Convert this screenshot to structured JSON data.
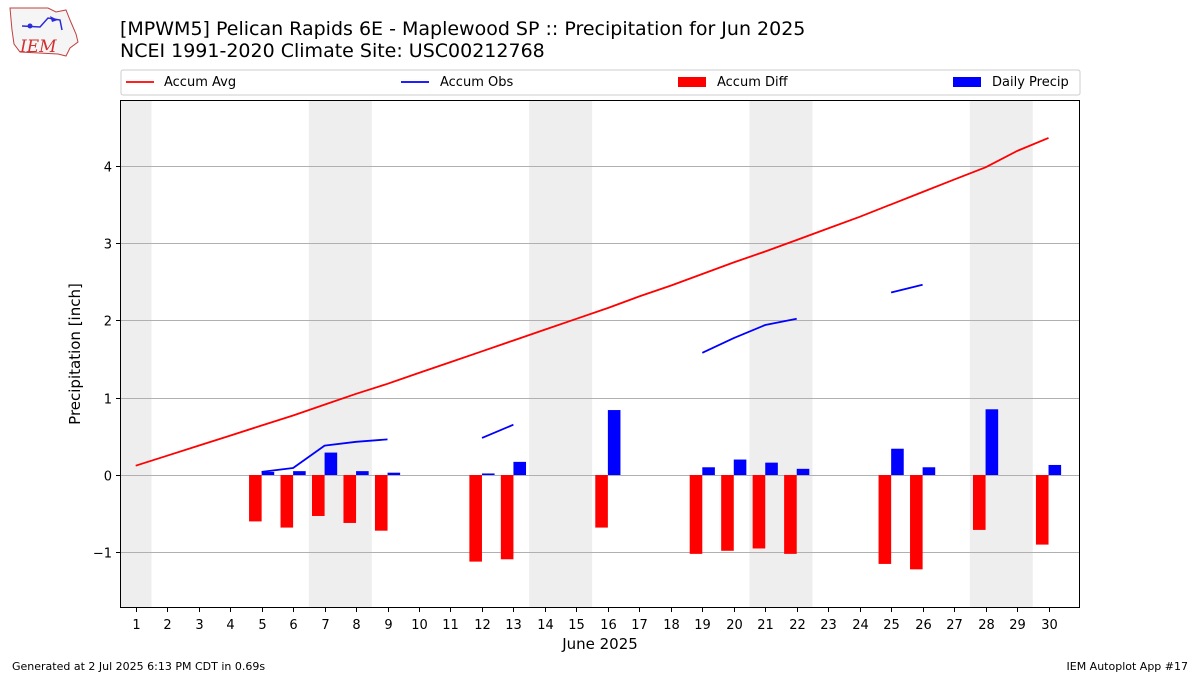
{
  "title_line1": "[MPWM5] Pelican Rapids 6E - Maplewood SP :: Precipitation for Jun 2025",
  "title_line2": "NCEI 1991-2020 Climate Site: USC00212768",
  "logo_text": "IEM",
  "footer_left": "Generated at 2 Jul 2025 6:13 PM CDT in 0.69s",
  "footer_right": "IEM Autoplot App #17",
  "colors": {
    "accum_avg": "#ff0000",
    "accum_obs": "#0000ff",
    "accum_diff": "#ff0000",
    "daily_precip": "#0000ff",
    "weekend_shade": "#eeeeee"
  },
  "chart_data": {
    "type": "bar",
    "xlabel": "June 2025",
    "ylabel": "Precipitation [inch]",
    "xlim": [
      0.5,
      31.0
    ],
    "ylim": [
      -1.72,
      4.85
    ],
    "yticks": [
      -1,
      0,
      1,
      2,
      3,
      4
    ],
    "ytick_labels": [
      "−1",
      "0",
      "1",
      "2",
      "3",
      "4"
    ],
    "x": [
      1,
      2,
      3,
      4,
      5,
      6,
      7,
      8,
      9,
      10,
      11,
      12,
      13,
      14,
      15,
      16,
      17,
      18,
      19,
      20,
      21,
      22,
      23,
      24,
      25,
      26,
      27,
      28,
      29,
      30
    ],
    "xtick_labels": [
      "1",
      "2",
      "3",
      "4",
      "5",
      "6",
      "7",
      "8",
      "9",
      "10",
      "11",
      "12",
      "13",
      "14",
      "15",
      "16",
      "17",
      "18",
      "19",
      "20",
      "21",
      "22",
      "23",
      "24",
      "25",
      "26",
      "27",
      "28",
      "29",
      "30"
    ],
    "shaded_days": [
      [
        0.5,
        1.5
      ],
      [
        6.5,
        8.5
      ],
      [
        13.5,
        15.5
      ],
      [
        20.5,
        22.5
      ],
      [
        27.5,
        29.5
      ]
    ],
    "grid": "horizontal",
    "legend_placement": "top",
    "series": [
      {
        "name": "Accum Avg",
        "kind": "line",
        "values": [
          0.12,
          0.25,
          0.38,
          0.51,
          0.64,
          0.77,
          0.91,
          1.05,
          1.18,
          1.32,
          1.46,
          1.6,
          1.74,
          1.88,
          2.02,
          2.16,
          2.31,
          2.45,
          2.6,
          2.75,
          2.89,
          3.04,
          3.19,
          3.34,
          3.5,
          3.66,
          3.82,
          3.98,
          4.19,
          4.36
        ]
      },
      {
        "name": "Accum Obs",
        "kind": "line",
        "values": [
          null,
          null,
          null,
          null,
          0.04,
          0.09,
          0.38,
          0.43,
          0.46,
          null,
          null,
          0.48,
          0.65,
          null,
          null,
          null,
          null,
          null,
          1.58,
          1.77,
          1.94,
          2.02,
          null,
          null,
          2.36,
          2.46,
          null,
          null,
          null,
          null
        ]
      },
      {
        "name": "Accum Diff",
        "kind": "bar",
        "values": [
          null,
          null,
          null,
          null,
          -0.6,
          -0.68,
          -0.53,
          -0.62,
          -0.72,
          null,
          null,
          -1.12,
          -1.09,
          null,
          null,
          -0.68,
          null,
          null,
          -1.02,
          -0.98,
          -0.95,
          -1.02,
          null,
          null,
          -1.15,
          -1.22,
          null,
          -0.71,
          null,
          -0.9
        ]
      },
      {
        "name": "Daily Precip",
        "kind": "bar",
        "values": [
          null,
          null,
          null,
          null,
          0.04,
          0.05,
          0.29,
          0.05,
          0.03,
          null,
          null,
          0.02,
          0.17,
          null,
          null,
          0.84,
          null,
          null,
          0.1,
          0.2,
          0.16,
          0.08,
          null,
          null,
          0.34,
          0.1,
          null,
          0.85,
          null,
          0.13
        ]
      }
    ]
  }
}
